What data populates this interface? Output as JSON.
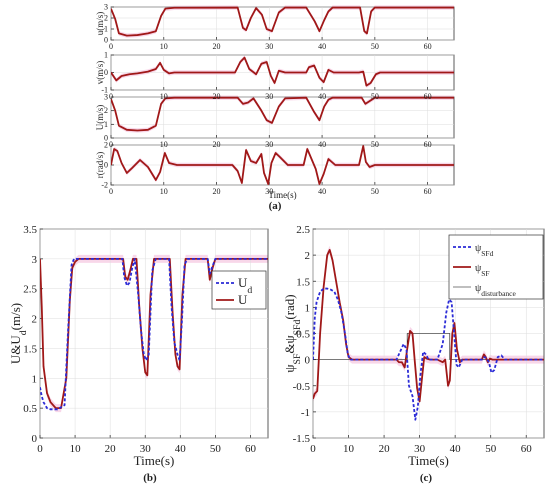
{
  "colors": {
    "dashed_blue": "#2b2bd6",
    "solid_red": "#a01818",
    "thin_black": "#000000",
    "band_pink": "#f6cde4",
    "axis": "#333333",
    "grid": "#dddddd"
  },
  "chart_data": [
    {
      "id": "a-u",
      "type": "line",
      "ylabel": "u(m/s)",
      "xlim": [
        0,
        65
      ],
      "ylim": [
        0,
        3
      ],
      "xticks": [
        "0",
        "10",
        "20",
        "30",
        "40",
        "50",
        "60"
      ],
      "yticks": [
        "0",
        "1",
        "2",
        "3"
      ],
      "grid": true,
      "series": [
        {
          "style": "solid_red",
          "x": [
            0,
            0.8,
            1.5,
            3,
            5,
            7,
            8.5,
            9.5,
            10.3,
            12,
            24,
            25,
            25.6,
            26.5,
            27.5,
            28.6,
            29.5,
            30.5,
            31.8,
            33,
            37,
            38.6,
            39.5,
            40.4,
            41.2,
            42,
            47.2,
            48,
            48.5,
            49.3,
            50,
            65
          ],
          "y": [
            2.85,
            1.9,
            0.6,
            0.4,
            0.45,
            0.6,
            0.8,
            2.2,
            2.85,
            2.93,
            2.95,
            1.1,
            0.9,
            2.0,
            2.9,
            2.3,
            1.0,
            0.8,
            2.5,
            2.95,
            2.95,
            1.7,
            0.8,
            1.8,
            2.6,
            2.95,
            2.95,
            0.8,
            0.6,
            2.6,
            2.95,
            2.95
          ]
        }
      ]
    },
    {
      "id": "a-v",
      "type": "line",
      "ylabel": "v(m/s)",
      "xlim": [
        0,
        65
      ],
      "ylim": [
        -1,
        1
      ],
      "xticks": [
        "0",
        "10",
        "20",
        "30",
        "40",
        "50",
        "60"
      ],
      "yticks": [
        "-1",
        "0",
        "1"
      ],
      "grid": true,
      "series": [
        {
          "style": "solid_red",
          "x": [
            0,
            1,
            2,
            3.5,
            5,
            7,
            8.5,
            9.3,
            10,
            11,
            12,
            23.5,
            24.5,
            25.3,
            26.2,
            27.5,
            28.5,
            29.5,
            30.3,
            31,
            31.8,
            33,
            37,
            37.5,
            38.5,
            39.5,
            40.3,
            41.2,
            42.2,
            47,
            47.8,
            48.4,
            49.2,
            50.2,
            51,
            65
          ],
          "y": [
            0,
            -0.45,
            -0.2,
            -0.1,
            -0.05,
            0.05,
            0.2,
            0.55,
            0.15,
            -0.05,
            0,
            0,
            0.6,
            0.85,
            0.2,
            -0.1,
            0.5,
            0.6,
            -0.2,
            -0.6,
            0.1,
            0,
            0,
            0.3,
            0.4,
            -0.3,
            -0.55,
            0.15,
            0,
            0,
            0.05,
            -0.75,
            -0.6,
            -0.1,
            0,
            0
          ]
        }
      ]
    },
    {
      "id": "a-U",
      "type": "line",
      "ylabel": "U(m/s)",
      "xlim": [
        0,
        65
      ],
      "ylim": [
        0,
        3
      ],
      "xticks": [
        "0",
        "10",
        "20",
        "30",
        "40",
        "50",
        "60"
      ],
      "yticks": [
        "0",
        "1",
        "2",
        "3"
      ],
      "grid": true,
      "series": [
        {
          "style": "solid_red",
          "x": [
            0,
            0.8,
            1.5,
            3,
            5,
            7,
            8.5,
            9.5,
            10.3,
            12,
            24,
            25,
            26,
            27,
            28.5,
            29.5,
            30.5,
            31.8,
            33,
            37,
            38.5,
            39.5,
            40.4,
            41.2,
            42,
            47.5,
            48.2,
            49,
            50,
            65
          ],
          "y": [
            2.85,
            2.0,
            0.9,
            0.6,
            0.55,
            0.6,
            0.9,
            2.5,
            2.9,
            2.95,
            2.95,
            2.5,
            2.6,
            2.9,
            2.0,
            1.3,
            1.1,
            2.3,
            2.9,
            2.95,
            1.9,
            1.3,
            2.3,
            2.8,
            2.95,
            2.95,
            2.5,
            2.7,
            2.95,
            2.95
          ]
        }
      ]
    },
    {
      "id": "a-r",
      "type": "line",
      "ylabel": "r(rad/s)",
      "xlabel": "Time(s)",
      "xlim": [
        0,
        65
      ],
      "ylim": [
        -2,
        2
      ],
      "xticks": [
        "0",
        "10",
        "20",
        "30",
        "40",
        "50",
        "60"
      ],
      "yticks": [
        "-2",
        "0",
        "2"
      ],
      "grid": true,
      "series": [
        {
          "style": "solid_red",
          "x": [
            0,
            0.6,
            1.2,
            2,
            3,
            4,
            5.5,
            7,
            8.5,
            9.3,
            10.2,
            11,
            12.5,
            23,
            24,
            24.8,
            25.6,
            26.5,
            27.5,
            28.5,
            29,
            29.8,
            30.4,
            31.2,
            32,
            33.5,
            36.5,
            37.2,
            38,
            38.8,
            39.5,
            40.3,
            41.2,
            42.5,
            47,
            47.8,
            48.3,
            49,
            50,
            65
          ],
          "y": [
            0,
            1.6,
            1.4,
            0.2,
            -0.8,
            -0.3,
            0.5,
            -0.2,
            -1.5,
            -0.7,
            1.2,
            0.2,
            0,
            0,
            -0.6,
            -1.8,
            1.5,
            0.4,
            0.2,
            1.1,
            -0.8,
            -1.9,
            0.2,
            1.2,
            0.8,
            0,
            0,
            1.6,
            0.6,
            -0.4,
            -1.9,
            -0.9,
            0.6,
            0,
            0,
            1.9,
            0.3,
            -0.2,
            0,
            0
          ]
        }
      ]
    },
    {
      "id": "b",
      "type": "line",
      "xlabel": "Time(s)",
      "ylabel": "U&U_d(m/s)",
      "xlim": [
        0,
        65
      ],
      "ylim": [
        0,
        3.5
      ],
      "xticks": [
        "0",
        "10",
        "20",
        "30",
        "40",
        "50",
        "60"
      ],
      "yticks": [
        "0",
        "0.5",
        "1",
        "1.5",
        "2",
        "2.5",
        "3",
        "3.5"
      ],
      "grid": true,
      "legend": "right",
      "series": [
        {
          "name": "U_d",
          "style": "dashed_blue",
          "x": [
            0,
            0.5,
            1,
            2,
            3,
            5,
            7,
            8,
            9,
            9.7,
            10.5,
            12,
            23.5,
            24,
            24.8,
            25.5,
            26.3,
            27,
            28,
            28.8,
            29.6,
            30.3,
            31,
            32,
            33,
            36.8,
            37.5,
            38.3,
            39.2,
            39.8,
            40.5,
            41.2,
            42,
            47.8,
            48.4,
            49,
            50,
            65
          ],
          "y": [
            0.85,
            0.7,
            0.6,
            0.5,
            0.48,
            0.48,
            0.55,
            1.8,
            2.9,
            3.0,
            3.0,
            3.0,
            3.0,
            2.7,
            2.55,
            2.6,
            2.85,
            3.0,
            2.4,
            1.8,
            1.4,
            1.3,
            1.4,
            2.8,
            3.0,
            3.0,
            2.2,
            1.6,
            1.4,
            1.3,
            2.0,
            2.9,
            3.0,
            3.0,
            2.75,
            2.85,
            3.0,
            3.0
          ]
        },
        {
          "name": "U",
          "style": "solid_red",
          "x": [
            0,
            0.5,
            1,
            2,
            3,
            4.5,
            6,
            7.5,
            8.5,
            9.2,
            10,
            11,
            12,
            23.7,
            24.3,
            25,
            25.7,
            26.5,
            27.5,
            28.3,
            29.2,
            30,
            30.6,
            31.5,
            32.5,
            37,
            37.8,
            38.6,
            39.2,
            39.8,
            40.6,
            41.5,
            42.2,
            47.8,
            48.4,
            49.2,
            50,
            65
          ],
          "y": [
            3.0,
            2.2,
            1.2,
            0.75,
            0.6,
            0.5,
            0.5,
            1.0,
            2.3,
            2.85,
            2.95,
            3.0,
            3.0,
            3.0,
            2.7,
            2.65,
            2.8,
            3.0,
            3.0,
            2.2,
            1.5,
            1.1,
            1.05,
            2.4,
            3.0,
            3.0,
            2.1,
            1.4,
            1.2,
            1.15,
            2.4,
            3.0,
            3.0,
            3.0,
            2.65,
            2.85,
            3.0,
            3.0
          ]
        }
      ]
    },
    {
      "id": "c",
      "type": "line",
      "xlabel": "Time(s)",
      "ylabel": "ψ_SF&ψ_SFd(rad)",
      "xlim": [
        0,
        65
      ],
      "ylim": [
        -1.5,
        2.5
      ],
      "xticks": [
        "0",
        "10",
        "20",
        "30",
        "40",
        "50",
        "60"
      ],
      "yticks": [
        "-1.5",
        "-1",
        "-0.5",
        "0",
        "0.5",
        "1",
        "1.5",
        "2",
        "2.5"
      ],
      "grid": true,
      "legend": "top-right",
      "series": [
        {
          "name": "ψ_SFd",
          "style": "dashed_blue",
          "x": [
            0,
            0.5,
            1,
            2,
            3,
            4,
            5,
            6,
            7,
            8,
            9,
            9.8,
            10.5,
            12,
            23.5,
            24.5,
            25.5,
            26.3,
            27,
            28,
            28.8,
            29.5,
            30.2,
            31,
            31.8,
            32.5,
            33.5,
            35,
            36.5,
            37.5,
            38.3,
            39,
            39.7,
            40.4,
            41,
            42,
            47.5,
            48.2,
            48.8,
            49.5,
            50.2,
            51,
            52,
            53,
            54,
            65
          ],
          "y": [
            0,
            0.8,
            1.1,
            1.3,
            1.36,
            1.36,
            1.34,
            1.3,
            1.15,
            0.9,
            0.5,
            0.1,
            0,
            0,
            0,
            0.15,
            0.3,
            0.2,
            -0.5,
            -0.7,
            -1.15,
            -0.9,
            -0.3,
            0.15,
            0.1,
            0,
            0,
            0,
            0.3,
            0.9,
            1.15,
            1.1,
            0.5,
            -0.1,
            -0.15,
            0,
            0,
            0.05,
            0.03,
            -0.05,
            -0.25,
            -0.2,
            0.05,
            0.08,
            0,
            0
          ]
        },
        {
          "name": "ψ_SF",
          "style": "solid_red",
          "x": [
            0,
            0.5,
            1.2,
            2,
            3,
            4,
            4.7,
            5.5,
            6.5,
            7.5,
            8.5,
            9.3,
            10,
            11,
            12,
            23.5,
            24.2,
            25,
            25.8,
            26.5,
            27.3,
            28,
            28.6,
            29.3,
            30,
            30.6,
            31.3,
            32,
            33,
            35,
            36.5,
            37.2,
            38,
            38.5,
            39.2,
            39.8,
            40.5,
            41.3,
            42,
            47.5,
            48.1,
            48.6,
            49.2,
            49.8,
            50.5,
            52,
            65
          ],
          "y": [
            -0.75,
            -0.65,
            -0.6,
            0.5,
            1.4,
            2.0,
            2.1,
            1.9,
            1.5,
            1.1,
            0.75,
            0.3,
            0.05,
            0,
            0,
            0,
            -0.05,
            -0.05,
            -0.15,
            0.2,
            0.55,
            0.5,
            0,
            -0.55,
            -0.8,
            -0.4,
            0.05,
            0.02,
            0,
            0,
            -0.05,
            0,
            -0.5,
            -0.4,
            0.5,
            0.7,
            0.2,
            -0.05,
            0,
            0,
            0.1,
            0.05,
            -0.05,
            0.02,
            0,
            0,
            0
          ]
        },
        {
          "name": "ψ_disturbance",
          "style": "thin_black",
          "x": [
            0,
            26.5,
            26.5,
            38.5,
            38.5,
            65
          ],
          "y": [
            0,
            0,
            0.5,
            0.5,
            0,
            0
          ]
        }
      ]
    }
  ],
  "labels": {
    "a": "(a)",
    "b": "(b)",
    "c": "(c)"
  }
}
